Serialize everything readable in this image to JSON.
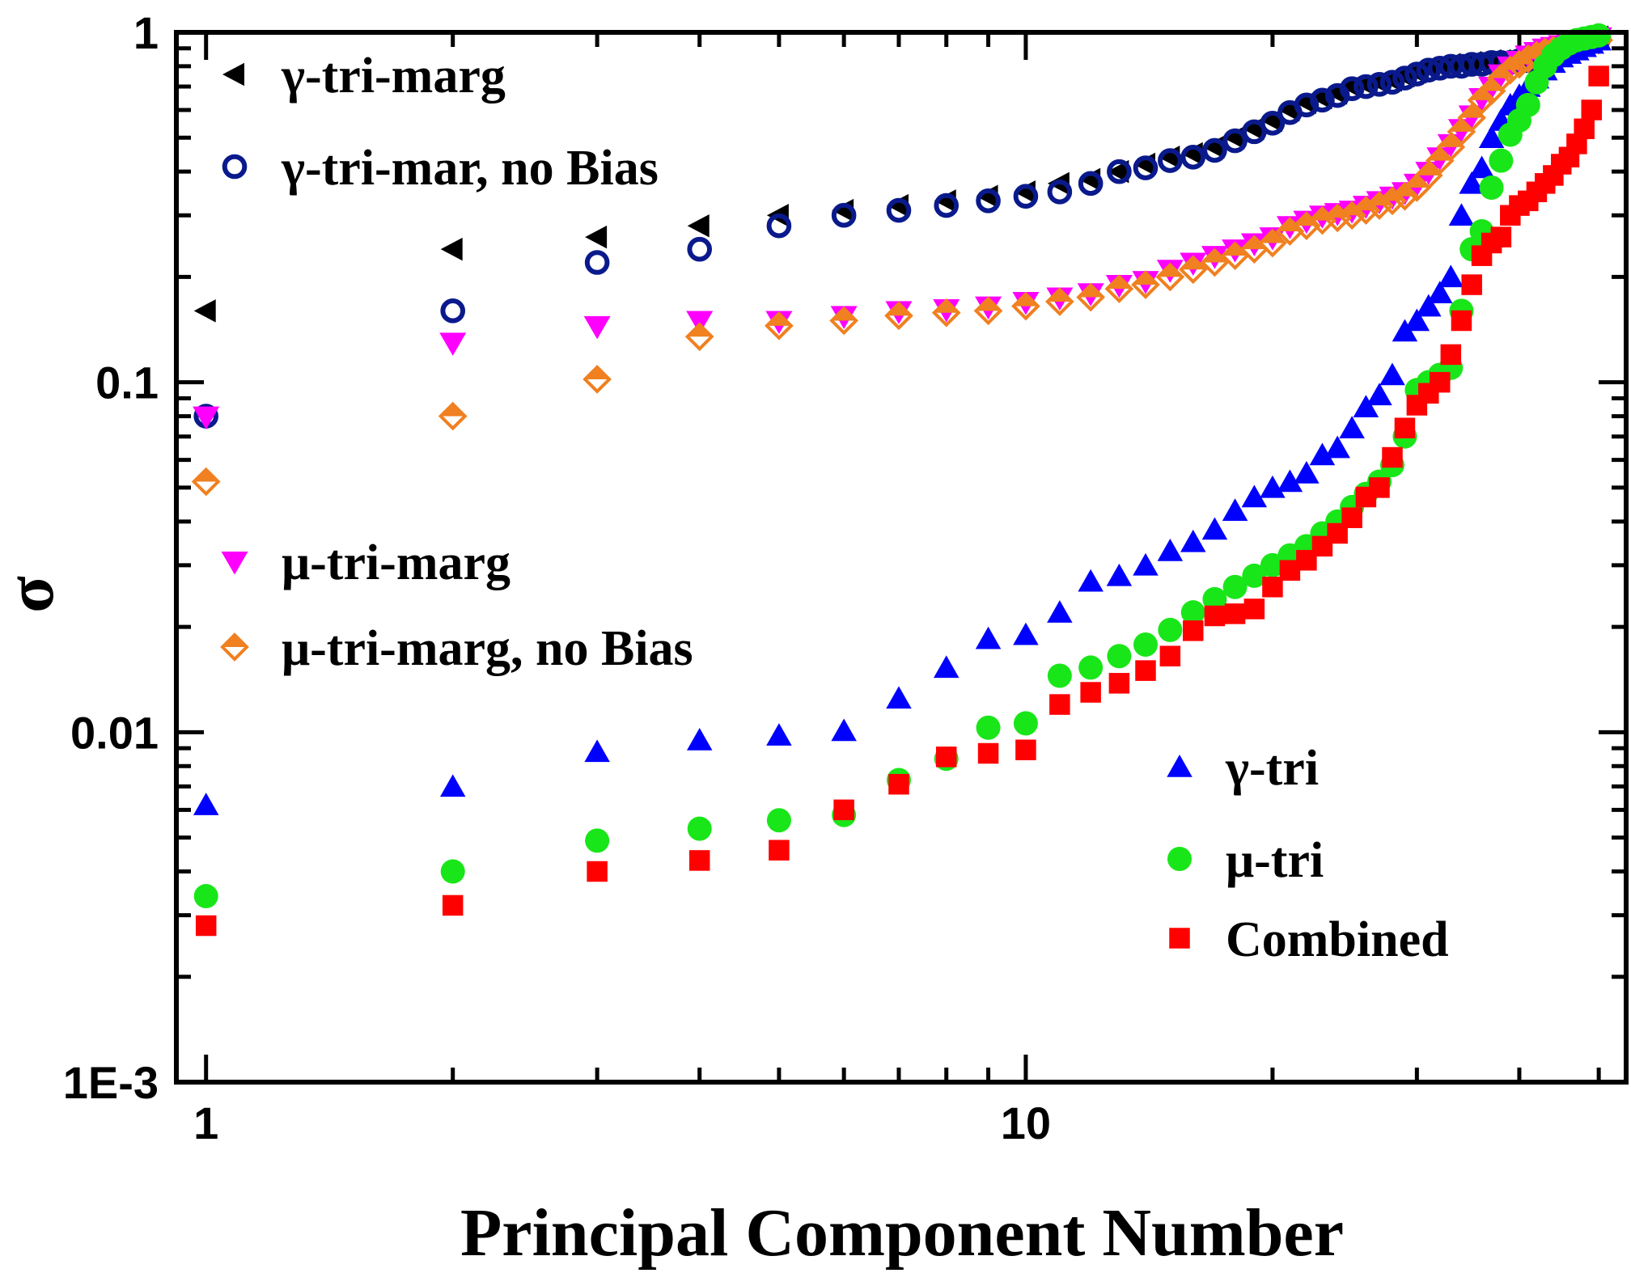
{
  "chart_data": {
    "type": "scatter",
    "xlabel": "Principal Component Number",
    "ylabel": "σ",
    "xscale": "log",
    "yscale": "log",
    "xlim": [
      0.92,
      54
    ],
    "ylim": [
      0.001,
      1
    ],
    "x_ticks": [
      {
        "value": 1,
        "label": "1"
      },
      {
        "value": 10,
        "label": "10"
      }
    ],
    "y_ticks": [
      {
        "value": 1,
        "label": "1"
      },
      {
        "value": 0.1,
        "label": "0.1"
      },
      {
        "value": 0.01,
        "label": "0.01"
      },
      {
        "value": 0.001,
        "label": "1E-3"
      }
    ],
    "grid": false,
    "series": [
      {
        "name": "γ-tri-marg",
        "marker": "triangle-left",
        "color": "#000000",
        "filled": true,
        "x": [
          1,
          2,
          3,
          4,
          5,
          6,
          7,
          8,
          9,
          10,
          11,
          12,
          13,
          14,
          15,
          16,
          17,
          18,
          19,
          20,
          21,
          22,
          23,
          24,
          25,
          26,
          27,
          28,
          29,
          30,
          31,
          32,
          33,
          34,
          35,
          36,
          37,
          38,
          39,
          40,
          41,
          42,
          43,
          44,
          45,
          46,
          47,
          48,
          49,
          50
        ],
        "y": [
          0.16,
          0.24,
          0.26,
          0.28,
          0.3,
          0.31,
          0.32,
          0.33,
          0.34,
          0.35,
          0.37,
          0.38,
          0.4,
          0.42,
          0.44,
          0.45,
          0.47,
          0.5,
          0.53,
          0.56,
          0.6,
          0.63,
          0.65,
          0.67,
          0.7,
          0.71,
          0.72,
          0.73,
          0.75,
          0.77,
          0.79,
          0.8,
          0.81,
          0.81,
          0.82,
          0.82,
          0.83,
          0.83,
          0.83,
          0.84,
          0.84,
          0.85,
          0.86,
          0.88,
          0.89,
          0.9,
          0.91,
          0.93,
          0.95,
          0.97
        ]
      },
      {
        "name": "γ-tri-mar, no Bias",
        "marker": "circle",
        "color": "#0a1a8c",
        "filled": false,
        "x": [
          1,
          2,
          3,
          4,
          5,
          6,
          7,
          8,
          9,
          10,
          11,
          12,
          13,
          14,
          15,
          16,
          17,
          18,
          19,
          20,
          21,
          22,
          23,
          24,
          25,
          26,
          27,
          28,
          29,
          30,
          31,
          32,
          33,
          34,
          35,
          36,
          37,
          38,
          39,
          40,
          41,
          42,
          43,
          44,
          45,
          46,
          47,
          48,
          49,
          50
        ],
        "y": [
          0.08,
          0.16,
          0.22,
          0.24,
          0.28,
          0.3,
          0.31,
          0.32,
          0.33,
          0.34,
          0.35,
          0.37,
          0.4,
          0.41,
          0.43,
          0.44,
          0.46,
          0.49,
          0.52,
          0.55,
          0.59,
          0.62,
          0.64,
          0.66,
          0.69,
          0.7,
          0.71,
          0.72,
          0.74,
          0.76,
          0.78,
          0.79,
          0.8,
          0.8,
          0.81,
          0.81,
          0.82,
          0.82,
          0.82,
          0.83,
          0.83,
          0.84,
          0.85,
          0.87,
          0.88,
          0.89,
          0.9,
          0.92,
          0.94,
          0.96
        ]
      },
      {
        "name": "μ-tri-marg",
        "marker": "triangle-down",
        "color": "#ff00ff",
        "filled": true,
        "x": [
          1,
          2,
          3,
          4,
          5,
          6,
          7,
          8,
          9,
          10,
          11,
          12,
          13,
          14,
          15,
          16,
          17,
          18,
          19,
          20,
          21,
          22,
          23,
          24,
          25,
          26,
          27,
          28,
          29,
          30,
          31,
          32,
          33,
          34,
          35,
          36,
          37,
          38,
          39,
          40,
          41,
          42,
          43,
          44,
          45,
          46,
          47,
          48,
          49,
          50
        ],
        "y": [
          0.08,
          0.13,
          0.145,
          0.15,
          0.15,
          0.155,
          0.16,
          0.162,
          0.165,
          0.17,
          0.175,
          0.18,
          0.19,
          0.195,
          0.21,
          0.22,
          0.23,
          0.24,
          0.25,
          0.26,
          0.28,
          0.29,
          0.3,
          0.305,
          0.31,
          0.32,
          0.33,
          0.34,
          0.35,
          0.37,
          0.4,
          0.44,
          0.48,
          0.53,
          0.58,
          0.65,
          0.7,
          0.76,
          0.8,
          0.83,
          0.86,
          0.88,
          0.9,
          0.91,
          0.92,
          0.93,
          0.94,
          0.95,
          0.96,
          0.97
        ]
      },
      {
        "name": "μ-tri-marg, no Bias",
        "marker": "diamond-half",
        "color": "#f08020",
        "filled": false,
        "x": [
          1,
          2,
          3,
          4,
          5,
          6,
          7,
          8,
          9,
          10,
          11,
          12,
          13,
          14,
          15,
          16,
          17,
          18,
          19,
          20,
          21,
          22,
          23,
          24,
          25,
          26,
          27,
          28,
          29,
          30,
          31,
          32,
          33,
          34,
          35,
          36,
          37,
          38,
          39,
          40,
          41,
          42,
          43,
          44,
          45,
          46,
          47,
          48,
          49,
          50
        ],
        "y": [
          0.052,
          0.08,
          0.102,
          0.135,
          0.145,
          0.15,
          0.155,
          0.158,
          0.16,
          0.165,
          0.17,
          0.175,
          0.185,
          0.19,
          0.2,
          0.21,
          0.22,
          0.23,
          0.24,
          0.25,
          0.27,
          0.28,
          0.29,
          0.295,
          0.3,
          0.31,
          0.32,
          0.33,
          0.34,
          0.36,
          0.39,
          0.43,
          0.47,
          0.52,
          0.57,
          0.64,
          0.68,
          0.74,
          0.78,
          0.81,
          0.84,
          0.86,
          0.88,
          0.89,
          0.9,
          0.91,
          0.92,
          0.93,
          0.94,
          0.95
        ]
      },
      {
        "name": "γ-tri",
        "marker": "triangle-up",
        "color": "#0000ff",
        "filled": true,
        "x": [
          1,
          2,
          3,
          4,
          5,
          6,
          7,
          8,
          9,
          10,
          11,
          12,
          13,
          14,
          15,
          16,
          17,
          18,
          19,
          20,
          21,
          22,
          23,
          24,
          25,
          26,
          27,
          28,
          29,
          30,
          31,
          32,
          33,
          34,
          35,
          36,
          37,
          38,
          39,
          40,
          41,
          42,
          43,
          44,
          45,
          46,
          47,
          48,
          49,
          50
        ],
        "y": [
          0.0062,
          0.007,
          0.0088,
          0.0095,
          0.0098,
          0.0101,
          0.0125,
          0.0153,
          0.0185,
          0.019,
          0.022,
          0.027,
          0.028,
          0.03,
          0.033,
          0.035,
          0.038,
          0.043,
          0.047,
          0.05,
          0.052,
          0.055,
          0.062,
          0.065,
          0.074,
          0.085,
          0.092,
          0.105,
          0.14,
          0.15,
          0.165,
          0.18,
          0.2,
          0.3,
          0.37,
          0.41,
          0.5,
          0.56,
          0.62,
          0.66,
          0.7,
          0.74,
          0.78,
          0.82,
          0.85,
          0.87,
          0.89,
          0.91,
          0.93,
          0.95
        ]
      },
      {
        "name": "μ-tri",
        "marker": "circle",
        "color": "#19e619",
        "filled": true,
        "x": [
          1,
          2,
          3,
          4,
          5,
          6,
          7,
          8,
          9,
          10,
          11,
          12,
          13,
          14,
          15,
          16,
          17,
          18,
          19,
          20,
          21,
          22,
          23,
          24,
          25,
          26,
          27,
          28,
          29,
          30,
          31,
          32,
          33,
          34,
          35,
          36,
          37,
          38,
          39,
          40,
          41,
          42,
          43,
          44,
          45,
          46,
          47,
          48,
          49,
          50
        ],
        "y": [
          0.0034,
          0.004,
          0.0049,
          0.0053,
          0.0056,
          0.0058,
          0.0073,
          0.0084,
          0.0103,
          0.0106,
          0.0145,
          0.0153,
          0.0165,
          0.0178,
          0.0196,
          0.022,
          0.024,
          0.026,
          0.028,
          0.03,
          0.032,
          0.034,
          0.037,
          0.04,
          0.044,
          0.048,
          0.052,
          0.058,
          0.07,
          0.095,
          0.1,
          0.105,
          0.11,
          0.16,
          0.24,
          0.27,
          0.36,
          0.43,
          0.51,
          0.56,
          0.62,
          0.72,
          0.8,
          0.86,
          0.9,
          0.93,
          0.95,
          0.96,
          0.97,
          0.98
        ]
      },
      {
        "name": "Combined",
        "marker": "square",
        "color": "#ff0000",
        "filled": true,
        "x": [
          1,
          2,
          3,
          4,
          5,
          6,
          7,
          8,
          9,
          10,
          11,
          12,
          13,
          14,
          15,
          16,
          17,
          18,
          19,
          20,
          21,
          22,
          23,
          24,
          25,
          26,
          27,
          28,
          29,
          30,
          31,
          32,
          33,
          34,
          35,
          36,
          37,
          38,
          39,
          40,
          41,
          42,
          43,
          44,
          45,
          46,
          47,
          48,
          49,
          50
        ],
        "y": [
          0.0028,
          0.0032,
          0.004,
          0.0043,
          0.0046,
          0.006,
          0.0071,
          0.0085,
          0.0087,
          0.0089,
          0.012,
          0.013,
          0.0138,
          0.015,
          0.0165,
          0.0195,
          0.0215,
          0.0218,
          0.0225,
          0.026,
          0.029,
          0.031,
          0.034,
          0.037,
          0.041,
          0.047,
          0.05,
          0.061,
          0.074,
          0.086,
          0.093,
          0.1,
          0.12,
          0.15,
          0.19,
          0.23,
          0.25,
          0.26,
          0.3,
          0.32,
          0.33,
          0.35,
          0.37,
          0.39,
          0.42,
          0.44,
          0.48,
          0.53,
          0.6,
          0.75
        ]
      }
    ]
  }
}
